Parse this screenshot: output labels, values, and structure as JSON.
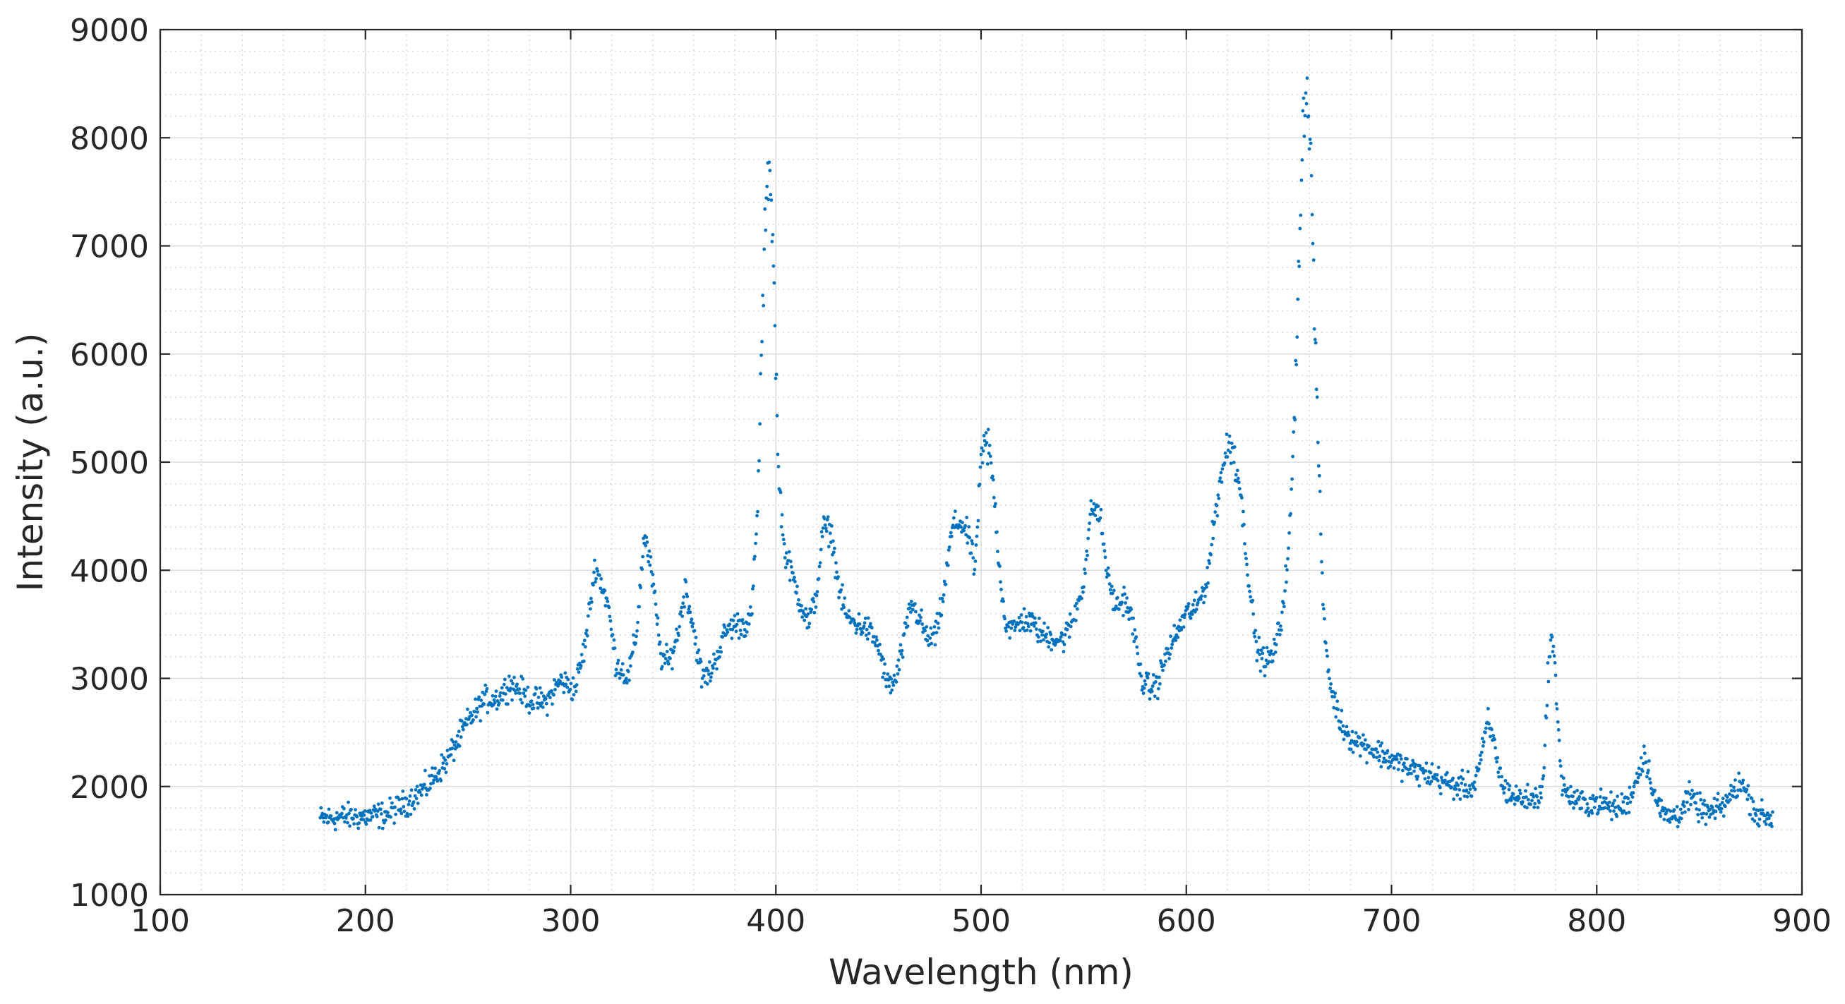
{
  "chart_data": {
    "type": "scatter",
    "title": "",
    "xlabel": "Wavelength (nm)",
    "ylabel": "Intensity (a.u.)",
    "xlim": [
      100,
      900
    ],
    "ylim": [
      1000,
      9000
    ],
    "x_ticks": [
      100,
      200,
      300,
      400,
      500,
      600,
      700,
      800,
      900
    ],
    "y_ticks": [
      1000,
      2000,
      3000,
      4000,
      5000,
      6000,
      7000,
      8000,
      9000
    ],
    "grid": true,
    "minor_grid": true,
    "marker_color": "#0072BD",
    "series": [
      {
        "x_range": [
          178,
          886
        ],
        "x_step": 0.35,
        "profile": [
          [
            178,
            1700
          ],
          [
            190,
            1720
          ],
          [
            200,
            1720
          ],
          [
            210,
            1740
          ],
          [
            220,
            1850
          ],
          [
            230,
            2000
          ],
          [
            240,
            2250
          ],
          [
            250,
            2600
          ],
          [
            258,
            2800
          ],
          [
            265,
            2820
          ],
          [
            270,
            2950
          ],
          [
            275,
            2900
          ],
          [
            280,
            2800
          ],
          [
            288,
            2780
          ],
          [
            295,
            2980
          ],
          [
            302,
            2900
          ],
          [
            307,
            3300
          ],
          [
            312,
            4050
          ],
          [
            318,
            3700
          ],
          [
            322,
            3150
          ],
          [
            328,
            3000
          ],
          [
            332,
            3400
          ],
          [
            336,
            4350
          ],
          [
            340,
            3900
          ],
          [
            344,
            3200
          ],
          [
            348,
            3150
          ],
          [
            352,
            3400
          ],
          [
            356,
            3850
          ],
          [
            360,
            3450
          ],
          [
            364,
            3000
          ],
          [
            368,
            3050
          ],
          [
            372,
            3250
          ],
          [
            376,
            3450
          ],
          [
            380,
            3500
          ],
          [
            385,
            3500
          ],
          [
            388,
            3550
          ],
          [
            391,
            4500
          ],
          [
            393,
            6000
          ],
          [
            395,
            7300
          ],
          [
            397,
            7800
          ],
          [
            399,
            6800
          ],
          [
            401,
            5000
          ],
          [
            404,
            4200
          ],
          [
            408,
            3950
          ],
          [
            412,
            3700
          ],
          [
            416,
            3500
          ],
          [
            420,
            3800
          ],
          [
            423,
            4400
          ],
          [
            427,
            4350
          ],
          [
            431,
            3800
          ],
          [
            435,
            3550
          ],
          [
            440,
            3500
          ],
          [
            445,
            3450
          ],
          [
            450,
            3300
          ],
          [
            454,
            2950
          ],
          [
            458,
            2950
          ],
          [
            462,
            3300
          ],
          [
            466,
            3700
          ],
          [
            470,
            3550
          ],
          [
            474,
            3350
          ],
          [
            478,
            3400
          ],
          [
            482,
            3800
          ],
          [
            486,
            4400
          ],
          [
            490,
            4450
          ],
          [
            494,
            4300
          ],
          [
            497,
            4000
          ],
          [
            500,
            5000
          ],
          [
            503,
            5200
          ],
          [
            506,
            4800
          ],
          [
            509,
            4000
          ],
          [
            512,
            3500
          ],
          [
            516,
            3450
          ],
          [
            520,
            3550
          ],
          [
            525,
            3500
          ],
          [
            530,
            3400
          ],
          [
            535,
            3380
          ],
          [
            540,
            3350
          ],
          [
            545,
            3550
          ],
          [
            550,
            3900
          ],
          [
            554,
            4600
          ],
          [
            558,
            4500
          ],
          [
            562,
            3900
          ],
          [
            566,
            3650
          ],
          [
            570,
            3750
          ],
          [
            574,
            3500
          ],
          [
            578,
            3000
          ],
          [
            582,
            2900
          ],
          [
            586,
            2950
          ],
          [
            590,
            3200
          ],
          [
            595,
            3400
          ],
          [
            600,
            3600
          ],
          [
            605,
            3650
          ],
          [
            610,
            3900
          ],
          [
            614,
            4500
          ],
          [
            618,
            5000
          ],
          [
            622,
            5200
          ],
          [
            626,
            4800
          ],
          [
            630,
            4000
          ],
          [
            634,
            3300
          ],
          [
            638,
            3150
          ],
          [
            642,
            3200
          ],
          [
            646,
            3500
          ],
          [
            650,
            4200
          ],
          [
            653,
            5500
          ],
          [
            655,
            7000
          ],
          [
            657,
            8200
          ],
          [
            659,
            8500
          ],
          [
            661,
            7600
          ],
          [
            663,
            6000
          ],
          [
            665,
            4700
          ],
          [
            667,
            3500
          ],
          [
            670,
            2950
          ],
          [
            675,
            2600
          ],
          [
            680,
            2450
          ],
          [
            690,
            2350
          ],
          [
            700,
            2250
          ],
          [
            710,
            2150
          ],
          [
            720,
            2100
          ],
          [
            730,
            2000
          ],
          [
            740,
            2000
          ],
          [
            744,
            2300
          ],
          [
            747,
            2600
          ],
          [
            750,
            2400
          ],
          [
            754,
            2000
          ],
          [
            760,
            1900
          ],
          [
            770,
            1880
          ],
          [
            774,
            2000
          ],
          [
            776,
            3000
          ],
          [
            778,
            3400
          ],
          [
            780,
            3000
          ],
          [
            783,
            2000
          ],
          [
            790,
            1850
          ],
          [
            800,
            1850
          ],
          [
            810,
            1800
          ],
          [
            815,
            1850
          ],
          [
            820,
            2100
          ],
          [
            823,
            2300
          ],
          [
            826,
            2100
          ],
          [
            830,
            1800
          ],
          [
            835,
            1720
          ],
          [
            840,
            1750
          ],
          [
            845,
            1900
          ],
          [
            850,
            1800
          ],
          [
            855,
            1750
          ],
          [
            860,
            1800
          ],
          [
            865,
            1900
          ],
          [
            870,
            2050
          ],
          [
            874,
            1900
          ],
          [
            878,
            1750
          ],
          [
            886,
            1700
          ]
        ],
        "noise_amplitude": 60
      }
    ]
  }
}
